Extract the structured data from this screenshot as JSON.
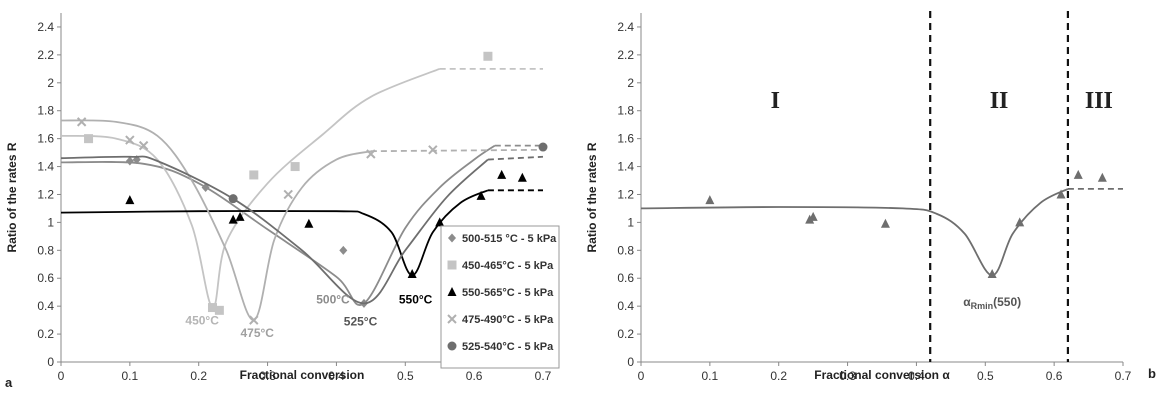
{
  "chart_data": [
    {
      "panel": "a",
      "type": "scatter",
      "xlabel": "Fractional conversion",
      "ylabel": "Ratio of the rates R",
      "xlim": [
        0,
        0.7
      ],
      "ylim": [
        0,
        2.5
      ],
      "xticks": [
        "0",
        "0.1",
        "0.2",
        "0.3",
        "0.4",
        "0.5",
        "0.6",
        "0.7"
      ],
      "yticks": [
        "0",
        "0.2",
        "0.4",
        "0.6",
        "0.8",
        "1",
        "1.2",
        "1.4",
        "1.6",
        "1.8",
        "2",
        "2.2",
        "2.4"
      ],
      "legend_position": "right",
      "series": [
        {
          "name": "500-515 °C - 5 kPa",
          "color": "#8c8c8c",
          "marker": "diamond",
          "points": [
            [
              0.1,
              1.44
            ],
            [
              0.11,
              1.45
            ],
            [
              0.21,
              1.25
            ],
            [
              0.25,
              1.17
            ],
            [
              0.41,
              0.8
            ],
            [
              0.44,
              0.42
            ]
          ],
          "curve": [
            [
              0,
              1.43
            ],
            [
              0.12,
              1.42
            ],
            [
              0.2,
              1.28
            ],
            [
              0.3,
              0.95
            ],
            [
              0.4,
              0.61
            ],
            [
              0.44,
              0.42
            ],
            [
              0.5,
              0.96
            ],
            [
              0.55,
              1.25
            ],
            [
              0.6,
              1.45
            ],
            [
              0.63,
              1.55
            ],
            [
              0.7,
              1.55
            ]
          ],
          "dashed_from": 0.63
        },
        {
          "name": "450-465°C - 5 kPa",
          "color": "#c4c4c4",
          "marker": "square",
          "points": [
            [
              0.04,
              1.6
            ],
            [
              0.22,
              0.39
            ],
            [
              0.23,
              0.37
            ],
            [
              0.28,
              1.34
            ],
            [
              0.34,
              1.4
            ],
            [
              0.62,
              2.19
            ]
          ],
          "curve": [
            [
              0,
              1.62
            ],
            [
              0.08,
              1.6
            ],
            [
              0.14,
              1.45
            ],
            [
              0.19,
              0.98
            ],
            [
              0.22,
              0.39
            ],
            [
              0.24,
              0.86
            ],
            [
              0.3,
              1.28
            ],
            [
              0.38,
              1.63
            ],
            [
              0.45,
              1.9
            ],
            [
              0.55,
              2.1
            ],
            [
              0.7,
              2.1
            ]
          ],
          "dashed_from": 0.56
        },
        {
          "name": "550-565°C - 5 kPa",
          "color": "#000000",
          "marker": "triangle",
          "points": [
            [
              0.1,
              1.16
            ],
            [
              0.25,
              1.02
            ],
            [
              0.26,
              1.04
            ],
            [
              0.36,
              0.99
            ],
            [
              0.51,
              0.63
            ],
            [
              0.55,
              1.0
            ],
            [
              0.61,
              1.19
            ],
            [
              0.64,
              1.34
            ],
            [
              0.67,
              1.32
            ]
          ],
          "curve": [
            [
              0,
              1.07
            ],
            [
              0.2,
              1.08
            ],
            [
              0.4,
              1.08
            ],
            [
              0.44,
              1.06
            ],
            [
              0.48,
              0.93
            ],
            [
              0.51,
              0.62
            ],
            [
              0.54,
              0.93
            ],
            [
              0.58,
              1.14
            ],
            [
              0.62,
              1.23
            ],
            [
              0.7,
              1.23
            ]
          ],
          "dashed_from": 0.62
        },
        {
          "name": "475-490°C - 5 kPa",
          "color": "#b0b0b0",
          "marker": "x",
          "points": [
            [
              0.03,
              1.72
            ],
            [
              0.1,
              1.59
            ],
            [
              0.12,
              1.55
            ],
            [
              0.28,
              0.3
            ],
            [
              0.33,
              1.2
            ],
            [
              0.45,
              1.49
            ],
            [
              0.54,
              1.52
            ]
          ],
          "curve": [
            [
              0,
              1.73
            ],
            [
              0.08,
              1.72
            ],
            [
              0.14,
              1.62
            ],
            [
              0.19,
              1.3
            ],
            [
              0.24,
              0.8
            ],
            [
              0.28,
              0.3
            ],
            [
              0.31,
              0.88
            ],
            [
              0.35,
              1.25
            ],
            [
              0.4,
              1.45
            ],
            [
              0.45,
              1.51
            ],
            [
              0.7,
              1.52
            ]
          ],
          "dashed_from": 0.46
        },
        {
          "name": "525-540°C - 5 kPa",
          "color": "#6e6e6e",
          "marker": "circle",
          "points": [
            [
              0.25,
              1.17
            ],
            [
              0.7,
              1.54
            ]
          ],
          "curve": [
            [
              0,
              1.46
            ],
            [
              0.1,
              1.47
            ],
            [
              0.14,
              1.44
            ],
            [
              0.25,
              1.17
            ],
            [
              0.35,
              0.8
            ],
            [
              0.44,
              0.42
            ],
            [
              0.5,
              0.8
            ],
            [
              0.56,
              1.18
            ],
            [
              0.62,
              1.45
            ],
            [
              0.7,
              1.47
            ]
          ],
          "dashed_from": 0.62
        }
      ],
      "annotations": [
        {
          "text": "450°C",
          "x": 0.205,
          "y": 0.27,
          "color": "#b5b5b5"
        },
        {
          "text": "475°C",
          "x": 0.285,
          "y": 0.18,
          "color": "#a0a0a0"
        },
        {
          "text": "500°C",
          "x": 0.395,
          "y": 0.42,
          "color": "#8c8c8c"
        },
        {
          "text": "525°C",
          "x": 0.435,
          "y": 0.26,
          "color": "#555555"
        },
        {
          "text": "550°C",
          "x": 0.515,
          "y": 0.42,
          "color": "#000000"
        }
      ]
    },
    {
      "panel": "b",
      "type": "scatter",
      "xlabel": "Fractional conversion α",
      "ylabel": "Ratio of the rates R",
      "xlim": [
        0,
        0.7
      ],
      "ylim": [
        0,
        2.5
      ],
      "xticks": [
        "0",
        "0.1",
        "0.2",
        "0.3",
        "0.4",
        "0.5",
        "0.6",
        "0.7"
      ],
      "yticks": [
        "0",
        "0.2",
        "0.4",
        "0.6",
        "0.8",
        "1",
        "1.2",
        "1.4",
        "1.6",
        "1.8",
        "2",
        "2.2",
        "2.4"
      ],
      "series": [
        {
          "color": "#6e6e6e",
          "marker": "triangle",
          "points": [
            [
              0.1,
              1.16
            ],
            [
              0.245,
              1.02
            ],
            [
              0.25,
              1.04
            ],
            [
              0.355,
              0.99
            ],
            [
              0.51,
              0.63
            ],
            [
              0.55,
              1.0
            ],
            [
              0.61,
              1.2
            ],
            [
              0.635,
              1.34
            ],
            [
              0.67,
              1.32
            ]
          ],
          "curve": [
            [
              0,
              1.1
            ],
            [
              0.2,
              1.11
            ],
            [
              0.38,
              1.1
            ],
            [
              0.43,
              1.06
            ],
            [
              0.47,
              0.92
            ],
            [
              0.51,
              0.62
            ],
            [
              0.54,
              0.92
            ],
            [
              0.58,
              1.14
            ],
            [
              0.62,
              1.24
            ],
            [
              0.7,
              1.24
            ]
          ],
          "dashed_from": 0.62
        }
      ],
      "vlines": [
        0.42,
        0.62
      ],
      "regions": [
        {
          "label": "I",
          "x": 0.195,
          "y": 1.82
        },
        {
          "label": "II",
          "x": 0.52,
          "y": 1.82
        },
        {
          "label": "III",
          "x": 0.665,
          "y": 1.82
        }
      ],
      "annotation": {
        "text": "α",
        "subscript": "Rmin",
        "suffix": "(550)",
        "x": 0.51,
        "y": 0.4,
        "color": "#555555"
      }
    }
  ],
  "labels": {
    "panel_a": "a",
    "panel_b": "b"
  }
}
